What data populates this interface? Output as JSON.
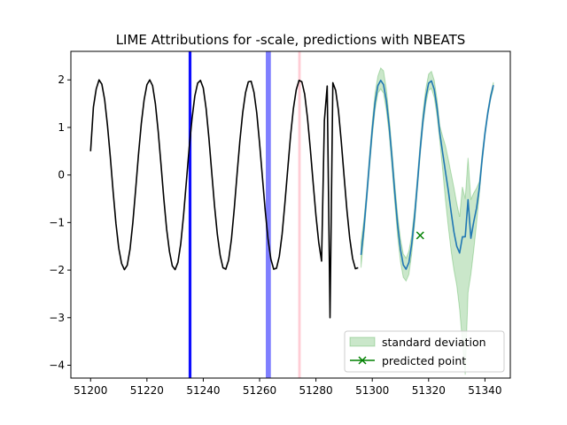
{
  "chart_data": {
    "type": "line",
    "title": "LIME Attributions for -scale, predictions with NBEATS",
    "xlabel": "",
    "ylabel": "",
    "xlim": [
      51193,
      51349
    ],
    "ylim": [
      -4.27,
      2.6
    ],
    "xticks": [
      51200,
      51220,
      51240,
      51260,
      51280,
      51300,
      51320,
      51340
    ],
    "yticks": [
      2,
      1,
      0,
      -1,
      -2,
      -3,
      -4
    ],
    "xtick_labels": [
      "51200",
      "51220",
      "51240",
      "51260",
      "51280",
      "51300",
      "51320",
      "51340"
    ],
    "ytick_labels": [
      "2",
      "1",
      "0",
      "−1",
      "−2",
      "−3",
      "−4"
    ],
    "grid": false,
    "legend_position": "bottom-right",
    "legend": {
      "std_label": "standard deviation",
      "point_label": "predicted point"
    },
    "attribution_bands": [
      {
        "x": [
          51234.8,
          51235.8
        ],
        "color": "#0000ff",
        "alpha": 0.95
      },
      {
        "x": [
          51262.2,
          51264.0
        ],
        "color": "#0000ff",
        "alpha": 0.5
      },
      {
        "x": [
          51273.7,
          51274.6
        ],
        "color": "#ffc0cb",
        "alpha": 0.8
      }
    ],
    "history": {
      "color": "#000000",
      "x": [
        51200,
        51201,
        51202,
        51203,
        51204,
        51205,
        51206,
        51207,
        51208,
        51209,
        51210,
        51211,
        51212,
        51213,
        51214,
        51215,
        51216,
        51217,
        51218,
        51219,
        51220,
        51221,
        51222,
        51223,
        51224,
        51225,
        51226,
        51227,
        51228,
        51229,
        51230,
        51231,
        51232,
        51233,
        51234,
        51235,
        51236,
        51237,
        51238,
        51239,
        51240,
        51241,
        51242,
        51243,
        51244,
        51245,
        51246,
        51247,
        51248,
        51249,
        51250,
        51251,
        51252,
        51253,
        51254,
        51255,
        51256,
        51257,
        51258,
        51259,
        51260,
        51261,
        51262,
        51263,
        51264,
        51265,
        51266,
        51267,
        51268,
        51269,
        51270,
        51271,
        51272,
        51273,
        51274,
        51275,
        51276,
        51277,
        51278,
        51279,
        51280,
        51281,
        51282,
        51283,
        51284,
        51285,
        51286,
        51287,
        51288,
        51289,
        51290,
        51291,
        51292,
        51293,
        51294,
        51295
      ],
      "y": [
        0.5,
        1.43,
        1.81,
        2.0,
        1.91,
        1.58,
        1.04,
        0.38,
        -0.35,
        -1.02,
        -1.54,
        -1.86,
        -1.99,
        -1.9,
        -1.56,
        -1.0,
        -0.3,
        0.43,
        1.08,
        1.58,
        1.9,
        2.0,
        1.88,
        1.5,
        0.92,
        0.22,
        -0.5,
        -1.14,
        -1.61,
        -1.91,
        -1.99,
        -1.84,
        -1.45,
        -0.85,
        -0.14,
        0.57,
        1.18,
        1.66,
        1.93,
        1.99,
        1.83,
        1.4,
        0.78,
        0.06,
        -0.65,
        -1.25,
        -1.69,
        -1.95,
        -1.98,
        -1.79,
        -1.35,
        -0.71,
        0.02,
        0.72,
        1.31,
        1.73,
        1.96,
        1.97,
        1.74,
        1.3,
        0.66,
        -0.05,
        -0.75,
        -1.35,
        -1.77,
        -1.98,
        -1.96,
        -1.71,
        -1.24,
        -0.58,
        0.13,
        0.83,
        1.4,
        1.79,
        1.99,
        1.96,
        1.7,
        1.2,
        0.55,
        -0.16,
        -0.85,
        -1.42,
        -1.81,
        1.15,
        1.87,
        -3.0,
        1.94,
        1.78,
        1.35,
        0.7,
        -0.03,
        -0.74,
        -1.33,
        -1.75,
        -1.97,
        -1.95
      ]
    },
    "prediction": {
      "color": "#1f77b4",
      "x": [
        51296,
        51297,
        51298,
        51299,
        51300,
        51301,
        51302,
        51303,
        51304,
        51305,
        51306,
        51307,
        51308,
        51309,
        51310,
        51311,
        51312,
        51313,
        51314,
        51315,
        51316,
        51317,
        51318,
        51319,
        51320,
        51321,
        51322,
        51323,
        51324,
        51325,
        51326,
        51327,
        51328,
        51329,
        51330,
        51331,
        51332,
        51333,
        51334,
        51335,
        51336,
        51337,
        51338,
        51339,
        51340,
        51341,
        51342,
        51343
      ],
      "y": [
        -1.68,
        -1.14,
        -0.46,
        0.27,
        0.96,
        1.53,
        1.88,
        1.99,
        1.9,
        1.56,
        1.03,
        0.35,
        -0.38,
        -1.05,
        -1.56,
        -1.89,
        -1.98,
        -1.84,
        -1.45,
        -0.89,
        -0.19,
        0.53,
        1.15,
        1.63,
        1.93,
        1.98,
        1.8,
        1.41,
        0.87,
        0.46,
        0.06,
        -0.33,
        -0.78,
        -1.2,
        -1.5,
        -1.64,
        -1.3,
        -1.3,
        -0.52,
        -1.33,
        -0.99,
        -0.7,
        -0.27,
        0.34,
        0.87,
        1.3,
        1.64,
        1.89
      ],
      "std_low": [
        -1.95,
        -1.32,
        -0.59,
        0.12,
        0.8,
        1.37,
        1.72,
        1.81,
        1.72,
        1.36,
        0.85,
        0.15,
        -0.6,
        -1.28,
        -1.82,
        -2.15,
        -2.23,
        -2.09,
        -1.66,
        -1.07,
        -0.33,
        0.39,
        1.02,
        1.49,
        1.78,
        1.82,
        1.63,
        1.24,
        0.7,
        0.1,
        -0.54,
        -1.09,
        -1.6,
        -2.0,
        -2.32,
        -2.82,
        -3.51,
        -4.2,
        -2.47,
        -2.09,
        -1.59,
        -1.03,
        -0.41,
        0.24,
        0.8,
        1.25,
        1.58,
        1.82
      ],
      "std_high": [
        -1.42,
        -0.95,
        -0.33,
        0.42,
        1.13,
        1.72,
        2.08,
        2.25,
        2.19,
        1.8,
        1.23,
        0.54,
        -0.18,
        -0.83,
        -1.34,
        -1.66,
        -1.75,
        -1.6,
        -1.26,
        -0.72,
        -0.05,
        0.68,
        1.32,
        1.81,
        2.12,
        2.18,
        1.99,
        1.59,
        1.03,
        0.81,
        0.61,
        0.33,
        0.03,
        -0.27,
        -0.6,
        -0.88,
        -0.25,
        -0.5,
        0.36,
        -0.52,
        -0.38,
        -0.28,
        -0.14,
        0.45,
        0.95,
        1.36,
        1.7,
        1.95
      ],
      "std_color": "#2ca02c",
      "std_alpha": 0.25
    },
    "predicted_point": {
      "x": 51317,
      "y": -1.27,
      "color": "#008000"
    }
  }
}
